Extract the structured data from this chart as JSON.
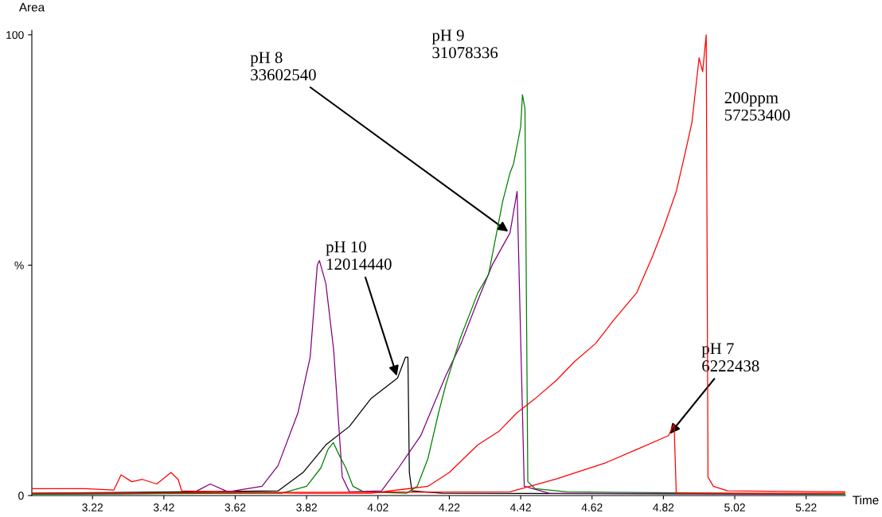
{
  "chart_data": {
    "type": "line",
    "xlabel": "Time",
    "ylabel": "Area",
    "xlim": [
      3.05,
      5.33
    ],
    "xticks": [
      3.22,
      3.42,
      3.62,
      3.82,
      4.02,
      4.22,
      4.42,
      4.62,
      4.82,
      5.02,
      5.22
    ],
    "ylim": [
      0,
      101
    ],
    "yticks": [
      0,
      {
        "value": 50,
        "label": "%"
      },
      100
    ],
    "grid": false,
    "legend": false,
    "marker": "none",
    "line_style": "solid",
    "series": [
      {
        "color": "#ff0000",
        "x": [
          3.05,
          3.2,
          3.28,
          3.3,
          3.33,
          3.36,
          3.4,
          3.44,
          3.46,
          3.47,
          3.6,
          3.8,
          4.0,
          4.16,
          4.22,
          4.3,
          4.36,
          4.41,
          4.46,
          4.52,
          4.57,
          4.63,
          4.68,
          4.745,
          4.79,
          4.82,
          4.856,
          4.88,
          4.9,
          4.91,
          4.92,
          4.93,
          4.94,
          4.945,
          4.96,
          5.0,
          5.33
        ],
        "values": [
          1.5,
          1.5,
          1.2,
          4.5,
          3,
          3.5,
          2.5,
          5,
          3.5,
          1,
          0.8,
          0.5,
          0.5,
          2,
          5,
          11,
          14,
          18,
          21,
          25,
          29,
          33,
          38,
          44,
          52,
          58,
          66,
          74,
          81,
          88,
          95,
          92,
          100,
          4,
          2,
          1,
          0.8
        ]
      },
      {
        "color": "#ff0000",
        "x": [
          3.05,
          4.39,
          4.52,
          4.655,
          4.745,
          4.834,
          4.85,
          4.856,
          5.33
        ],
        "values": [
          0.5,
          0.8,
          3.6,
          7,
          10,
          13,
          15.5,
          0.5,
          0.5
        ]
      },
      {
        "color": "#008000",
        "x": [
          3.05,
          3.75,
          3.82,
          3.86,
          3.88,
          3.895,
          3.91,
          3.93,
          3.95,
          3.98,
          4.1,
          4.13,
          4.16,
          4.19,
          4.21,
          4.25,
          4.3,
          4.33,
          4.35,
          4.37,
          4.39,
          4.4,
          4.41,
          4.42,
          4.425,
          4.432,
          4.44,
          4.46,
          4.55,
          5.33
        ],
        "values": [
          0.3,
          0.5,
          2,
          6,
          10,
          11.5,
          9,
          6,
          2,
          0.8,
          0.5,
          2,
          8,
          18,
          24,
          34,
          44,
          48,
          56,
          64,
          70,
          72,
          76,
          80,
          87,
          84,
          3,
          1.5,
          0.8,
          0.3
        ]
      },
      {
        "color": "#800080",
        "x": [
          3.05,
          3.5,
          3.55,
          3.6,
          3.695,
          3.74,
          3.796,
          3.83,
          3.85,
          3.856,
          3.874,
          3.896,
          3.92,
          3.94,
          4.03,
          4.075,
          4.14,
          4.21,
          4.253,
          4.298,
          4.34,
          4.39,
          4.41,
          4.43,
          4.5,
          5.33
        ],
        "values": [
          0.3,
          0.5,
          2.5,
          0.8,
          2,
          6.5,
          18,
          30,
          50,
          51,
          46,
          31.5,
          4,
          0.8,
          1,
          5.7,
          13,
          26,
          33,
          42,
          50,
          57,
          66,
          2,
          0.5,
          0.3
        ]
      },
      {
        "color": "#000000",
        "x": [
          3.05,
          3.74,
          3.81,
          3.874,
          3.94,
          4.0,
          4.075,
          4.097,
          4.104,
          4.108,
          4.115,
          4.2,
          5.33
        ],
        "values": [
          0.5,
          1,
          5,
          11,
          15,
          21,
          25.5,
          30,
          30,
          5,
          1,
          0.5,
          0.3
        ]
      }
    ],
    "annotations": [
      {
        "text": "pH 9\n31078336",
        "x": 4.425,
        "y": 87
      },
      "200ppm\n57253400",
      {
        "text": "pH 8\n33602540",
        "x": 4.39,
        "y": 57
      },
      {
        "text": "pH 10\n12014440",
        "x": 4.075,
        "y": 25.5
      },
      {
        "text": "pH 7\n6222438",
        "x": 4.834,
        "y": 13
      }
    ]
  }
}
